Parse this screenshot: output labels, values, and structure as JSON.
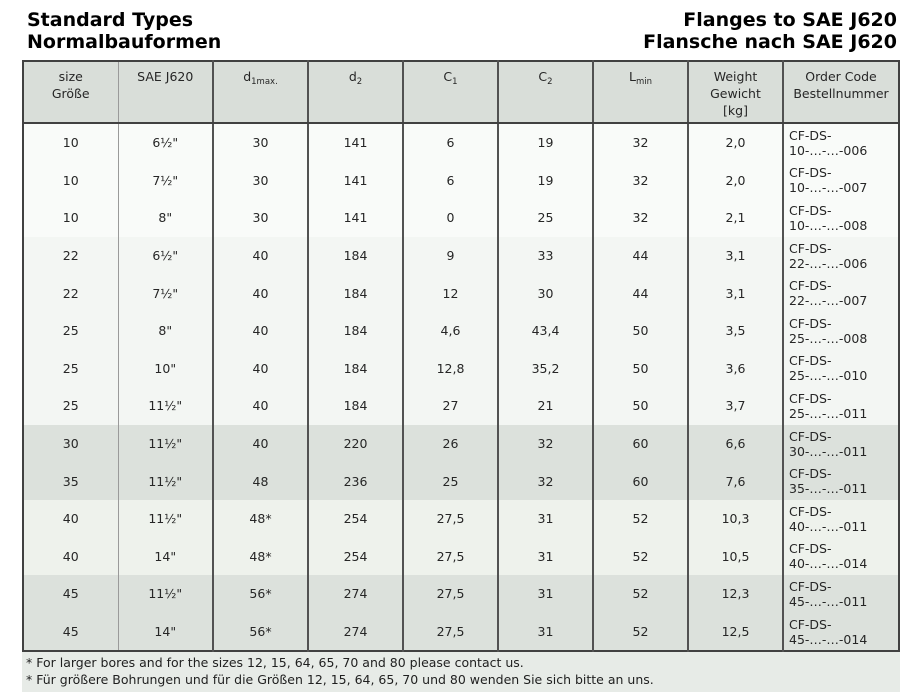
{
  "page": {
    "title_left": [
      "Standard Types",
      "Normalbauformen"
    ],
    "title_right": [
      "Flanges to SAE J620",
      "Flansche nach SAE J620"
    ]
  },
  "table": {
    "columns": [
      {
        "id": "size",
        "lines": [
          "size",
          "Größe"
        ]
      },
      {
        "id": "sae",
        "lines": [
          "SAE J620"
        ]
      },
      {
        "id": "d1",
        "base": "d",
        "sub": "1max."
      },
      {
        "id": "d2",
        "base": "d",
        "sub": "2"
      },
      {
        "id": "c1",
        "base": "C",
        "sub": "1"
      },
      {
        "id": "c2",
        "base": "C",
        "sub": "2"
      },
      {
        "id": "lmin",
        "base": "L",
        "sub": "min"
      },
      {
        "id": "weight",
        "lines": [
          "Weight",
          "Gewicht",
          "[kg]"
        ]
      },
      {
        "id": "order",
        "lines": [
          "Order Code",
          "Bestellnummer"
        ]
      }
    ],
    "rows": [
      {
        "size": "10",
        "sae": "6½\"",
        "d1": "30",
        "d2": "141",
        "c1": "6",
        "c2": "19",
        "lmin": "32",
        "weight": "2,0",
        "order": "CF-DS-10-…-…-006"
      },
      {
        "size": "10",
        "sae": "7½\"",
        "d1": "30",
        "d2": "141",
        "c1": "6",
        "c2": "19",
        "lmin": "32",
        "weight": "2,0",
        "order": "CF-DS-10-…-…-007"
      },
      {
        "size": "10",
        "sae": "8\"",
        "d1": "30",
        "d2": "141",
        "c1": "0",
        "c2": "25",
        "lmin": "32",
        "weight": "2,1",
        "order": "CF-DS-10-…-…-008"
      },
      {
        "size": "22",
        "sae": "6½\"",
        "d1": "40",
        "d2": "184",
        "c1": "9",
        "c2": "33",
        "lmin": "44",
        "weight": "3,1",
        "order": "CF-DS-22-…-…-006"
      },
      {
        "size": "22",
        "sae": "7½\"",
        "d1": "40",
        "d2": "184",
        "c1": "12",
        "c2": "30",
        "lmin": "44",
        "weight": "3,1",
        "order": "CF-DS-22-…-…-007"
      },
      {
        "size": "25",
        "sae": "8\"",
        "d1": "40",
        "d2": "184",
        "c1": "4,6",
        "c2": "43,4",
        "lmin": "50",
        "weight": "3,5",
        "order": "CF-DS-25-…-…-008"
      },
      {
        "size": "25",
        "sae": "10\"",
        "d1": "40",
        "d2": "184",
        "c1": "12,8",
        "c2": "35,2",
        "lmin": "50",
        "weight": "3,6",
        "order": "CF-DS-25-…-…-010"
      },
      {
        "size": "25",
        "sae": "11½\"",
        "d1": "40",
        "d2": "184",
        "c1": "27",
        "c2": "21",
        "lmin": "50",
        "weight": "3,7",
        "order": "CF-DS-25-…-…-011"
      },
      {
        "size": "30",
        "sae": "11½\"",
        "d1": "40",
        "d2": "220",
        "c1": "26",
        "c2": "32",
        "lmin": "60",
        "weight": "6,6",
        "order": "CF-DS-30-…-…-011"
      },
      {
        "size": "35",
        "sae": "11½\"",
        "d1": "48",
        "d2": "236",
        "c1": "25",
        "c2": "32",
        "lmin": "60",
        "weight": "7,6",
        "order": "CF-DS-35-…-…-011"
      },
      {
        "size": "40",
        "sae": "11½\"",
        "d1": "48*",
        "d2": "254",
        "c1": "27,5",
        "c2": "31",
        "lmin": "52",
        "weight": "10,3",
        "order": "CF-DS-40-…-…-011"
      },
      {
        "size": "40",
        "sae": "14\"",
        "d1": "48*",
        "d2": "254",
        "c1": "27,5",
        "c2": "31",
        "lmin": "52",
        "weight": "10,5",
        "order": "CF-DS-40-…-…-014"
      },
      {
        "size": "45",
        "sae": "11½\"",
        "d1": "56*",
        "d2": "274",
        "c1": "27,5",
        "c2": "31",
        "lmin": "52",
        "weight": "12,3",
        "order": "CF-DS-45-…-…-011"
      },
      {
        "size": "45",
        "sae": "14\"",
        "d1": "56*",
        "d2": "274",
        "c1": "27,5",
        "c2": "31",
        "lmin": "52",
        "weight": "12,5",
        "order": "CF-DS-45-…-…-014"
      }
    ]
  },
  "footnotes": [
    "* For larger bores and for the sizes 12, 15, 64, 65, 70 and 80 please contact us.",
    "* Für größere Bohrungen und für die Größen 12, 15, 64, 65, 70 und 80 wenden Sie sich bitte an uns."
  ],
  "colors": {
    "header_row_bg": "#d9ded9",
    "band_dark": "#dce1dc",
    "band_light": "#eef2ec",
    "footnote_bg": "#e7ebe7",
    "border_dark": "#414141",
    "border_light": "#9a9a9a"
  }
}
